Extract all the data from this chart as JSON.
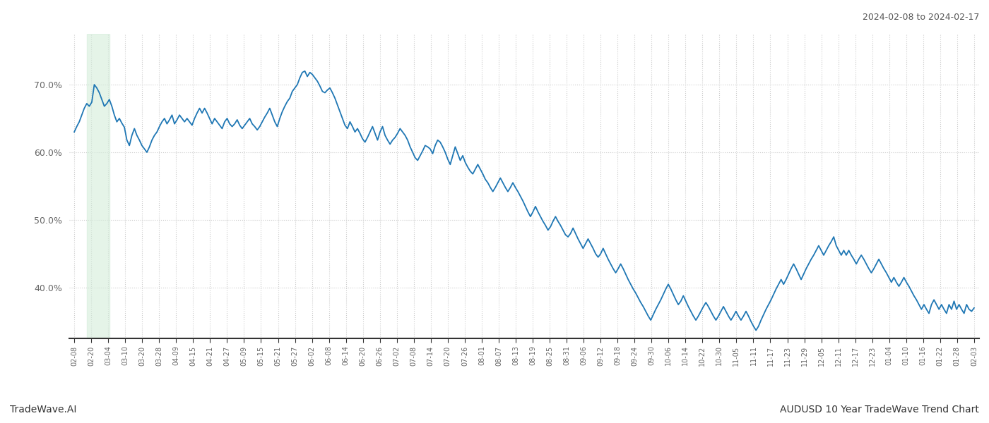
{
  "title_right": "2024-02-08 to 2024-02-17",
  "footer_left": "TradeWave.AI",
  "footer_right": "AUDUSD 10 Year TradeWave Trend Chart",
  "line_color": "#1f77b4",
  "highlight_color": "#d4edda",
  "highlight_alpha": 0.6,
  "background_color": "#ffffff",
  "grid_color": "#cccccc",
  "grid_style": ":",
  "line_width": 1.3,
  "ylim": [
    0.325,
    0.775
  ],
  "yticks": [
    0.4,
    0.5,
    0.6,
    0.7
  ],
  "x_labels": [
    "02-08",
    "02-20",
    "03-04",
    "03-10",
    "03-20",
    "03-28",
    "04-09",
    "04-15",
    "04-21",
    "04-27",
    "05-09",
    "05-15",
    "05-21",
    "05-27",
    "06-02",
    "06-08",
    "06-14",
    "06-20",
    "06-26",
    "07-02",
    "07-08",
    "07-14",
    "07-20",
    "07-26",
    "08-01",
    "08-07",
    "08-13",
    "08-19",
    "08-25",
    "08-31",
    "09-06",
    "09-12",
    "09-18",
    "09-24",
    "09-30",
    "10-06",
    "10-14",
    "10-22",
    "10-30",
    "11-05",
    "11-11",
    "11-17",
    "11-23",
    "11-29",
    "12-05",
    "12-11",
    "12-17",
    "12-23",
    "01-04",
    "01-10",
    "01-16",
    "01-22",
    "01-28",
    "02-03"
  ],
  "y_values": [
    0.63,
    0.638,
    0.645,
    0.655,
    0.665,
    0.672,
    0.668,
    0.674,
    0.7,
    0.695,
    0.688,
    0.678,
    0.668,
    0.672,
    0.678,
    0.668,
    0.655,
    0.645,
    0.65,
    0.643,
    0.637,
    0.618,
    0.61,
    0.625,
    0.635,
    0.625,
    0.618,
    0.61,
    0.605,
    0.6,
    0.608,
    0.618,
    0.625,
    0.63,
    0.638,
    0.645,
    0.65,
    0.642,
    0.648,
    0.655,
    0.642,
    0.648,
    0.655,
    0.65,
    0.645,
    0.65,
    0.645,
    0.64,
    0.65,
    0.658,
    0.665,
    0.658,
    0.665,
    0.658,
    0.65,
    0.642,
    0.65,
    0.645,
    0.64,
    0.635,
    0.645,
    0.65,
    0.642,
    0.638,
    0.642,
    0.648,
    0.64,
    0.635,
    0.64,
    0.645,
    0.65,
    0.642,
    0.638,
    0.633,
    0.638,
    0.645,
    0.652,
    0.658,
    0.665,
    0.655,
    0.645,
    0.638,
    0.65,
    0.66,
    0.668,
    0.675,
    0.68,
    0.69,
    0.695,
    0.7,
    0.71,
    0.718,
    0.72,
    0.712,
    0.718,
    0.715,
    0.71,
    0.705,
    0.698,
    0.69,
    0.688,
    0.692,
    0.695,
    0.688,
    0.68,
    0.67,
    0.66,
    0.65,
    0.64,
    0.635,
    0.645,
    0.638,
    0.63,
    0.635,
    0.628,
    0.62,
    0.615,
    0.622,
    0.63,
    0.638,
    0.628,
    0.618,
    0.63,
    0.638,
    0.625,
    0.618,
    0.612,
    0.618,
    0.622,
    0.628,
    0.635,
    0.63,
    0.625,
    0.618,
    0.608,
    0.6,
    0.592,
    0.588,
    0.595,
    0.602,
    0.61,
    0.608,
    0.605,
    0.598,
    0.61,
    0.618,
    0.615,
    0.608,
    0.6,
    0.59,
    0.582,
    0.595,
    0.608,
    0.598,
    0.588,
    0.595,
    0.585,
    0.578,
    0.572,
    0.568,
    0.575,
    0.582,
    0.575,
    0.568,
    0.56,
    0.555,
    0.548,
    0.542,
    0.548,
    0.555,
    0.562,
    0.555,
    0.548,
    0.542,
    0.548,
    0.555,
    0.548,
    0.542,
    0.535,
    0.528,
    0.52,
    0.512,
    0.505,
    0.512,
    0.52,
    0.512,
    0.505,
    0.498,
    0.492,
    0.485,
    0.49,
    0.498,
    0.505,
    0.498,
    0.492,
    0.485,
    0.478,
    0.475,
    0.48,
    0.488,
    0.48,
    0.472,
    0.465,
    0.458,
    0.465,
    0.472,
    0.465,
    0.458,
    0.45,
    0.445,
    0.45,
    0.458,
    0.45,
    0.442,
    0.435,
    0.428,
    0.422,
    0.428,
    0.435,
    0.428,
    0.42,
    0.412,
    0.405,
    0.398,
    0.392,
    0.385,
    0.378,
    0.372,
    0.365,
    0.358,
    0.352,
    0.36,
    0.368,
    0.375,
    0.382,
    0.39,
    0.398,
    0.405,
    0.398,
    0.39,
    0.382,
    0.375,
    0.38,
    0.388,
    0.38,
    0.372,
    0.365,
    0.358,
    0.352,
    0.358,
    0.365,
    0.372,
    0.378,
    0.372,
    0.365,
    0.358,
    0.352,
    0.358,
    0.365,
    0.372,
    0.365,
    0.358,
    0.352,
    0.358,
    0.365,
    0.358,
    0.352,
    0.358,
    0.365,
    0.358,
    0.35,
    0.343,
    0.337,
    0.343,
    0.352,
    0.36,
    0.368,
    0.375,
    0.382,
    0.39,
    0.398,
    0.405,
    0.412,
    0.405,
    0.412,
    0.42,
    0.428,
    0.435,
    0.428,
    0.42,
    0.412,
    0.42,
    0.428,
    0.435,
    0.442,
    0.448,
    0.455,
    0.462,
    0.455,
    0.448,
    0.455,
    0.462,
    0.468,
    0.475,
    0.462,
    0.455,
    0.448,
    0.455,
    0.448,
    0.455,
    0.448,
    0.442,
    0.435,
    0.442,
    0.448,
    0.442,
    0.435,
    0.428,
    0.422,
    0.428,
    0.435,
    0.442,
    0.435,
    0.428,
    0.422,
    0.415,
    0.408,
    0.415,
    0.408,
    0.402,
    0.408,
    0.415,
    0.408,
    0.402,
    0.395,
    0.388,
    0.382,
    0.375,
    0.368,
    0.375,
    0.368,
    0.362,
    0.375,
    0.382,
    0.375,
    0.368,
    0.375,
    0.368,
    0.362,
    0.375,
    0.368,
    0.38,
    0.368,
    0.375,
    0.368,
    0.362,
    0.375,
    0.368,
    0.365,
    0.37
  ]
}
